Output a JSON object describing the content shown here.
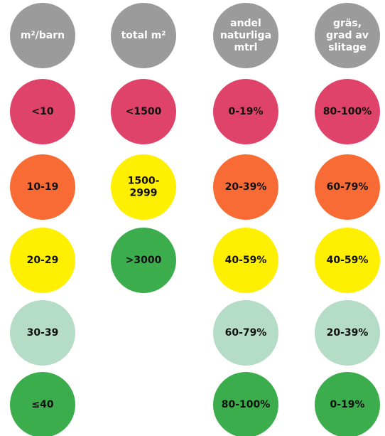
{
  "columns": [
    {
      "header": [
        "m²/barn"
      ],
      "cells": [
        {
          "label": [
            "<10"
          ],
          "color": "#e0436a"
        },
        {
          "label": [
            "10-19"
          ],
          "color": "#f86b35"
        },
        {
          "label": [
            "20-29"
          ],
          "color": "#ffef00"
        },
        {
          "label": [
            "30-39"
          ],
          "color": "#b4dcc6"
        },
        {
          "label": [
            "≤40"
          ],
          "color": "#3cad4c"
        }
      ]
    },
    {
      "header": [
        "total m²"
      ],
      "cells": [
        {
          "label": [
            "<1500"
          ],
          "color": "#e0436a"
        },
        {
          "label": [
            "1500-",
            "2999"
          ],
          "color": "#ffef00"
        },
        {
          "label": [
            ">3000"
          ],
          "color": "#3cad4c"
        }
      ]
    },
    {
      "header": [
        "andel",
        "naturliga",
        "mtrl"
      ],
      "cells": [
        {
          "label": [
            "0-19%"
          ],
          "color": "#e0436a"
        },
        {
          "label": [
            "20-39%"
          ],
          "color": "#f86b35"
        },
        {
          "label": [
            "40-59%"
          ],
          "color": "#ffef00"
        },
        {
          "label": [
            "60-79%"
          ],
          "color": "#b4dcc6"
        },
        {
          "label": [
            "80-100%"
          ],
          "color": "#3cad4c"
        }
      ]
    },
    {
      "header": [
        "gräs,",
        "grad av",
        "slitage"
      ],
      "cells": [
        {
          "label": [
            "80-100%"
          ],
          "color": "#e0436a"
        },
        {
          "label": [
            "60-79%"
          ],
          "color": "#f86b35"
        },
        {
          "label": [
            "40-59%"
          ],
          "color": "#ffef00"
        },
        {
          "label": [
            "20-39%"
          ],
          "color": "#b4dcc6"
        },
        {
          "label": [
            "0-19%"
          ],
          "color": "#3cad4c"
        }
      ]
    }
  ]
}
